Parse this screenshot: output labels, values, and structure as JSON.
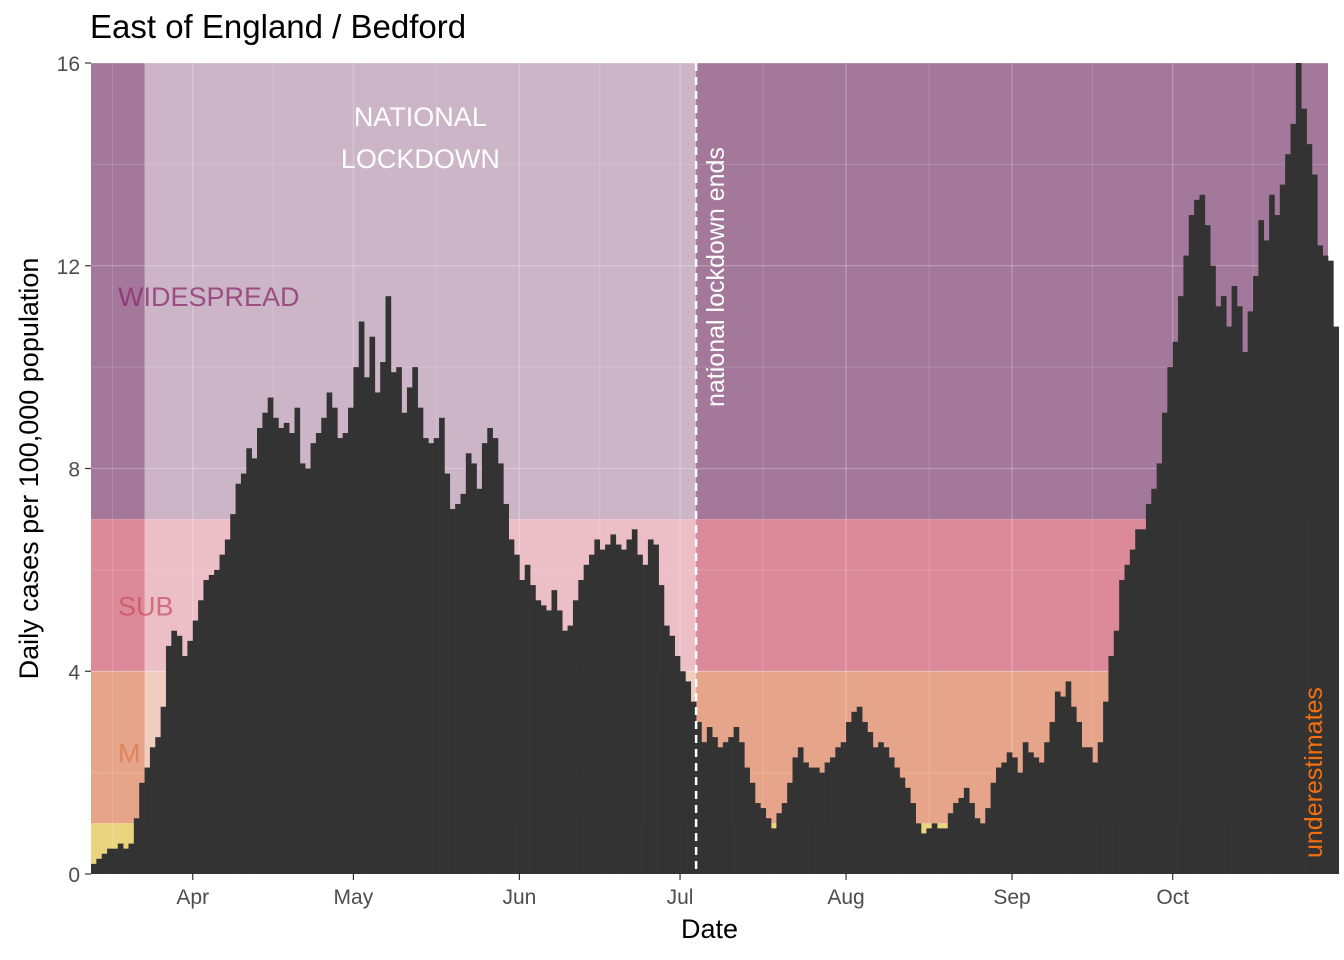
{
  "chart_data": {
    "type": "bar",
    "title": "East of England / Bedford",
    "xlabel": "Date",
    "ylabel": "Daily cases per 100,000 population",
    "ylim": [
      0,
      16
    ],
    "x_start": "2020-03-13",
    "x_end": "2020-10-30",
    "y_ticks": [
      {
        "value": 0,
        "label": "0"
      },
      {
        "value": 4,
        "label": "4"
      },
      {
        "value": 8,
        "label": "8"
      },
      {
        "value": 12,
        "label": "12"
      },
      {
        "value": 16,
        "label": "16"
      }
    ],
    "x_ticks": [
      {
        "date": "2020-04-01",
        "label": "Apr"
      },
      {
        "date": "2020-05-01",
        "label": "May"
      },
      {
        "date": "2020-06-01",
        "label": "Jun"
      },
      {
        "date": "2020-07-01",
        "label": "Jul"
      },
      {
        "date": "2020-08-01",
        "label": "Aug"
      },
      {
        "date": "2020-09-01",
        "label": "Sep"
      },
      {
        "date": "2020-10-01",
        "label": "Oct"
      }
    ],
    "grid": true,
    "bar_color": "#333333",
    "bands": [
      {
        "label": "WIDESPREAD",
        "from": 7,
        "to": 16,
        "color": "#a3789a",
        "text_color": "#8b2a6e"
      },
      {
        "label": "SUB",
        "from": 4,
        "to": 7,
        "color": "#dc8a99",
        "text_color": "#c8506a"
      },
      {
        "label": "M",
        "from": 1,
        "to": 4,
        "color": "#e6a58a",
        "text_color": "#dc7a4e"
      },
      {
        "label": "",
        "from": 0,
        "to": 1,
        "color": "#ebd47e",
        "text_color": ""
      }
    ],
    "lockdown": {
      "label": "NATIONAL\nLOCKDOWN",
      "start": "2020-03-23",
      "end": "2020-07-04",
      "color": "#ffffff"
    },
    "lockdown_end": {
      "date": "2020-07-04",
      "label": "national lockdown ends"
    },
    "note": {
      "label": "underestimates",
      "color": "#f2700f"
    },
    "dates_start": "2020-03-13",
    "values": [
      0.2,
      0.3,
      0.4,
      0.5,
      0.5,
      0.6,
      0.5,
      0.6,
      1.1,
      1.8,
      2.1,
      2.5,
      2.7,
      3.3,
      4.5,
      4.8,
      4.7,
      4.3,
      4.6,
      5.0,
      5.4,
      5.8,
      5.9,
      6.0,
      6.3,
      6.6,
      7.1,
      7.7,
      7.9,
      8.4,
      8.2,
      8.8,
      9.1,
      9.4,
      9.0,
      8.8,
      8.9,
      8.7,
      9.2,
      8.1,
      8.0,
      8.5,
      8.7,
      9.0,
      9.5,
      9.2,
      8.6,
      8.7,
      9.2,
      10.0,
      10.9,
      9.8,
      10.6,
      9.5,
      10.1,
      11.4,
      9.9,
      10.0,
      9.1,
      9.6,
      10.0,
      9.2,
      8.6,
      8.5,
      8.6,
      9.0,
      7.9,
      7.2,
      7.3,
      7.5,
      8.3,
      8.1,
      7.6,
      8.5,
      8.8,
      8.6,
      8.1,
      7.3,
      6.6,
      6.3,
      5.8,
      6.1,
      5.7,
      5.4,
      5.3,
      5.2,
      5.6,
      5.2,
      4.8,
      4.9,
      5.4,
      5.8,
      6.1,
      6.3,
      6.6,
      6.4,
      6.5,
      6.7,
      6.5,
      6.4,
      6.6,
      6.8,
      6.3,
      6.1,
      6.6,
      6.5,
      5.7,
      4.9,
      4.7,
      4.3,
      4.0,
      3.8,
      3.4,
      3.0,
      2.6,
      2.9,
      2.7,
      2.5,
      2.6,
      2.7,
      2.9,
      2.6,
      2.1,
      1.8,
      1.4,
      1.3,
      1.1,
      0.9,
      1.2,
      1.4,
      1.8,
      2.3,
      2.5,
      2.2,
      2.1,
      2.1,
      2.0,
      2.2,
      2.3,
      2.5,
      2.6,
      3.0,
      3.2,
      3.3,
      3.0,
      2.8,
      2.5,
      2.6,
      2.5,
      2.3,
      2.1,
      1.9,
      1.7,
      1.4,
      1.0,
      0.8,
      0.9,
      1.0,
      0.9,
      0.9,
      1.2,
      1.4,
      1.5,
      1.7,
      1.4,
      1.1,
      1.0,
      1.3,
      1.8,
      2.1,
      2.2,
      2.4,
      2.3,
      2.0,
      2.6,
      2.4,
      2.3,
      2.2,
      2.6,
      3.0,
      3.6,
      3.5,
      3.8,
      3.3,
      3.0,
      2.5,
      2.5,
      2.2,
      2.6,
      3.4,
      4.3,
      4.8,
      5.8,
      6.1,
      6.4,
      6.8,
      6.8,
      7.3,
      7.6,
      8.1,
      9.1,
      10.0,
      10.5,
      11.4,
      12.2,
      13.0,
      13.3,
      13.4,
      12.8,
      12.0,
      11.2,
      11.4,
      10.8,
      11.6,
      11.2,
      10.3,
      11.1,
      11.8,
      12.9,
      12.5,
      13.4,
      13.0,
      13.6,
      14.2,
      14.8,
      16.0,
      15.1,
      14.4,
      13.8,
      12.4,
      12.2,
      12.1,
      10.8
    ]
  }
}
